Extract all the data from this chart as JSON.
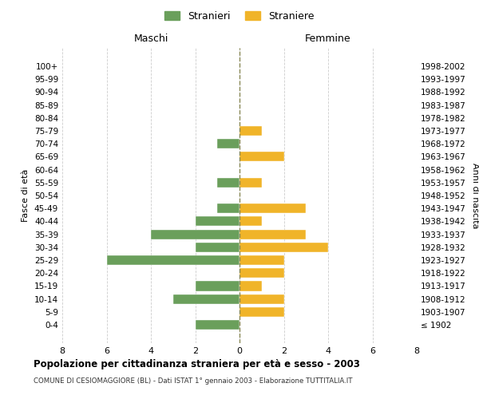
{
  "age_groups": [
    "100+",
    "95-99",
    "90-94",
    "85-89",
    "80-84",
    "75-79",
    "70-74",
    "65-69",
    "60-64",
    "55-59",
    "50-54",
    "45-49",
    "40-44",
    "35-39",
    "30-34",
    "25-29",
    "20-24",
    "15-19",
    "10-14",
    "5-9",
    "0-4"
  ],
  "birth_years": [
    "≤ 1902",
    "1903-1907",
    "1908-1912",
    "1913-1917",
    "1918-1922",
    "1923-1927",
    "1928-1932",
    "1933-1937",
    "1938-1942",
    "1943-1947",
    "1948-1952",
    "1953-1957",
    "1958-1962",
    "1963-1967",
    "1968-1972",
    "1973-1977",
    "1978-1982",
    "1983-1987",
    "1988-1992",
    "1993-1997",
    "1998-2002"
  ],
  "maschi": [
    0,
    0,
    0,
    0,
    0,
    0,
    1,
    0,
    0,
    1,
    0,
    1,
    2,
    4,
    2,
    6,
    0,
    2,
    3,
    0,
    2
  ],
  "femmine": [
    0,
    0,
    0,
    0,
    0,
    1,
    0,
    2,
    0,
    1,
    0,
    3,
    1,
    3,
    4,
    2,
    2,
    1,
    2,
    2,
    0
  ],
  "color_maschi": "#6a9f5b",
  "color_femmine": "#f0b429",
  "title": "Popolazione per cittadinanza straniera per età e sesso - 2003",
  "subtitle": "COMUNE DI CESIOMAGGIORE (BL) - Dati ISTAT 1° gennaio 2003 - Elaborazione TUTTITALIA.IT",
  "xlabel_left": "Maschi",
  "xlabel_right": "Femmine",
  "ylabel_left": "Fasce di età",
  "ylabel_right": "Anni di nascita",
  "legend_maschi": "Stranieri",
  "legend_femmine": "Straniere",
  "xlim": 8,
  "background_color": "#ffffff",
  "grid_color": "#cccccc",
  "bar_edge_color": "#ffffff"
}
